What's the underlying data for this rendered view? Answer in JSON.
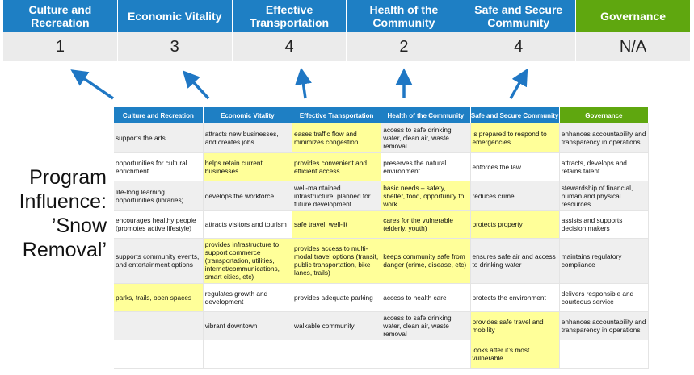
{
  "summary": {
    "headers": [
      "Culture and Recreation",
      "Economic Vitality",
      "Effective Transportation",
      "Health of the Community",
      "Safe and Secure Community",
      "Governance"
    ],
    "scores": [
      "1",
      "3",
      "4",
      "2",
      "4",
      "N/A"
    ]
  },
  "program_label": "Program Influence: ’Snow Removal’",
  "colors": {
    "header_blue": "#1e7fc4",
    "governance_green": "#5fa70f",
    "highlight_yellow": "#ffff99",
    "arrow_blue": "#1f77c4"
  },
  "table": {
    "headers": [
      "Culture and Recreation",
      "Economic Vitality",
      "Effective Transportation",
      "Health of the Community",
      "Safe and Secure Community",
      "Governance"
    ],
    "rows": [
      [
        "supports the arts",
        "attracts new businesses, and creates jobs",
        "eases traffic flow and minimizes congestion",
        "access to safe drinking water, clean air, waste removal",
        "is prepared to respond to emergencies",
        "enhances accountability and transparency in operations"
      ],
      [
        "opportunities for cultural enrichment",
        "helps retain current businesses",
        "provides convenient and efficient access",
        "preserves the natural environment",
        "enforces the law",
        "attracts, develops and retains talent"
      ],
      [
        "life-long learning opportunities (libraries)",
        "develops the workforce",
        "well-maintained infrastructure, planned for future development",
        "basic needs – safety, shelter, food, opportunity to work",
        "reduces crime",
        "stewardship of financial, human and physical resources"
      ],
      [
        "encourages healthy people (promotes active lifestyle)",
        "attracts visitors and tourism",
        "safe travel, well-lit",
        "cares for the vulnerable (elderly, youth)",
        "protects property",
        "assists and supports decision makers"
      ],
      [
        "supports community events, and entertainment options",
        "provides infrastructure to support commerce (transportation, utilities, internet/communications, smart cities, etc)",
        "provides access to multi-modal travel options (transit, public transportation, bike lanes, trails)",
        "keeps community safe from danger (crime, disease, etc)",
        "ensures safe air and access to drinking water",
        "maintains regulatory compliance"
      ],
      [
        "parks, trails, open spaces",
        "regulates growth and development",
        "provides adequate parking",
        "access to health care",
        "protects the environment",
        "delivers responsible and courteous service"
      ],
      [
        "",
        "vibrant downtown",
        "walkable community",
        "access to safe drinking water, clean air, waste removal",
        "provides safe travel and mobility",
        "enhances accountability and transparency in operations"
      ],
      [
        "",
        "",
        "",
        "",
        "looks after it’s most vulnerable",
        ""
      ]
    ],
    "highlighted": [
      [
        2,
        4
      ],
      [
        1,
        2
      ],
      [
        3
      ],
      [
        2,
        3,
        4
      ],
      [
        1,
        2,
        3
      ],
      [
        0
      ],
      [
        4
      ],
      [
        4
      ]
    ]
  }
}
